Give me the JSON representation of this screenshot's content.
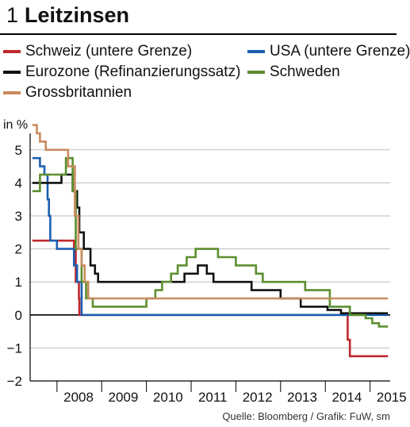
{
  "figure": {
    "number": "1",
    "title": "Leitzinsen",
    "source": "Quelle: Bloomberg / Grafik: FuW, sm"
  },
  "chart_data": {
    "type": "line",
    "ylabel": "in %",
    "ylim": [
      -2,
      5.5
    ],
    "xlim": [
      2007.4,
      2015.45
    ],
    "y_ticks": [
      -2,
      -1,
      0,
      1,
      2,
      3,
      4,
      5
    ],
    "y_tick_labels": [
      "−2",
      "−1",
      "0",
      "1",
      "2",
      "3",
      "4",
      "5"
    ],
    "x_ticks": [
      2008,
      2009,
      2010,
      2011,
      2012,
      2013,
      2014,
      2015
    ],
    "x_tick_labels": [
      "2008",
      "2009",
      "2010",
      "2011",
      "2012",
      "2013",
      "2014",
      "2015"
    ],
    "grid": "horizontal",
    "legend_position": "top",
    "series": [
      {
        "name": "Schweiz (untere Grenze)",
        "color": "#c0282e",
        "points": [
          [
            2007.45,
            2.25
          ],
          [
            2008.2,
            2.25
          ],
          [
            2008.38,
            2.25
          ],
          [
            2008.38,
            2.0
          ],
          [
            2008.42,
            2.0
          ],
          [
            2008.42,
            1.0
          ],
          [
            2008.49,
            1.0
          ],
          [
            2008.49,
            0.5
          ],
          [
            2008.5,
            0.5
          ],
          [
            2008.5,
            0.0
          ],
          [
            2014.5,
            0.0
          ],
          [
            2014.5,
            -0.75
          ],
          [
            2014.55,
            -0.75
          ],
          [
            2014.55,
            -1.25
          ],
          [
            2015.4,
            -1.25
          ]
        ]
      },
      {
        "name": "USA (untere Grenze)",
        "color": "#1c5fb0",
        "points": [
          [
            2007.45,
            4.75
          ],
          [
            2007.62,
            4.75
          ],
          [
            2007.62,
            4.5
          ],
          [
            2007.72,
            4.5
          ],
          [
            2007.72,
            4.25
          ],
          [
            2007.79,
            4.25
          ],
          [
            2007.79,
            3.5
          ],
          [
            2007.82,
            3.5
          ],
          [
            2007.82,
            3.0
          ],
          [
            2007.85,
            3.0
          ],
          [
            2007.85,
            2.25
          ],
          [
            2008.0,
            2.25
          ],
          [
            2008.0,
            2.0
          ],
          [
            2008.38,
            2.0
          ],
          [
            2008.38,
            1.5
          ],
          [
            2008.45,
            1.5
          ],
          [
            2008.45,
            1.0
          ],
          [
            2008.55,
            1.0
          ],
          [
            2008.55,
            0.0
          ],
          [
            2015.4,
            0.0
          ]
        ]
      },
      {
        "name": "Eurozone (Refinanzierungssatz)",
        "color": "#111111",
        "points": [
          [
            2007.45,
            4.0
          ],
          [
            2008.1,
            4.0
          ],
          [
            2008.1,
            4.25
          ],
          [
            2008.35,
            4.25
          ],
          [
            2008.35,
            3.75
          ],
          [
            2008.45,
            3.75
          ],
          [
            2008.45,
            3.25
          ],
          [
            2008.5,
            3.25
          ],
          [
            2008.5,
            2.5
          ],
          [
            2008.6,
            2.5
          ],
          [
            2008.6,
            2.0
          ],
          [
            2008.75,
            2.0
          ],
          [
            2008.75,
            1.5
          ],
          [
            2008.85,
            1.5
          ],
          [
            2008.85,
            1.25
          ],
          [
            2008.92,
            1.25
          ],
          [
            2008.92,
            1.0
          ],
          [
            2010.85,
            1.0
          ],
          [
            2010.85,
            1.25
          ],
          [
            2011.15,
            1.25
          ],
          [
            2011.15,
            1.5
          ],
          [
            2011.35,
            1.5
          ],
          [
            2011.35,
            1.25
          ],
          [
            2011.5,
            1.25
          ],
          [
            2011.5,
            1.0
          ],
          [
            2012.35,
            1.0
          ],
          [
            2012.35,
            0.75
          ],
          [
            2013.0,
            0.75
          ],
          [
            2013.0,
            0.5
          ],
          [
            2013.45,
            0.5
          ],
          [
            2013.45,
            0.25
          ],
          [
            2014.05,
            0.25
          ],
          [
            2014.05,
            0.15
          ],
          [
            2014.35,
            0.15
          ],
          [
            2014.35,
            0.05
          ],
          [
            2015.4,
            0.05
          ]
        ]
      },
      {
        "name": "Schweden",
        "color": "#5b8f2e",
        "points": [
          [
            2007.45,
            3.75
          ],
          [
            2007.62,
            3.75
          ],
          [
            2007.62,
            4.25
          ],
          [
            2008.2,
            4.25
          ],
          [
            2008.2,
            4.75
          ],
          [
            2008.35,
            4.75
          ],
          [
            2008.35,
            3.75
          ],
          [
            2008.42,
            3.75
          ],
          [
            2008.42,
            2.0
          ],
          [
            2008.55,
            2.0
          ],
          [
            2008.55,
            1.0
          ],
          [
            2008.65,
            1.0
          ],
          [
            2008.65,
            0.5
          ],
          [
            2008.8,
            0.5
          ],
          [
            2008.8,
            0.25
          ],
          [
            2010.0,
            0.25
          ],
          [
            2010.0,
            0.5
          ],
          [
            2010.2,
            0.5
          ],
          [
            2010.2,
            0.75
          ],
          [
            2010.35,
            0.75
          ],
          [
            2010.35,
            1.0
          ],
          [
            2010.55,
            1.0
          ],
          [
            2010.55,
            1.25
          ],
          [
            2010.7,
            1.25
          ],
          [
            2010.7,
            1.5
          ],
          [
            2010.9,
            1.5
          ],
          [
            2010.9,
            1.75
          ],
          [
            2011.1,
            1.75
          ],
          [
            2011.1,
            2.0
          ],
          [
            2011.6,
            2.0
          ],
          [
            2011.6,
            1.75
          ],
          [
            2012.0,
            1.75
          ],
          [
            2012.0,
            1.5
          ],
          [
            2012.45,
            1.5
          ],
          [
            2012.45,
            1.25
          ],
          [
            2012.6,
            1.25
          ],
          [
            2012.6,
            1.0
          ],
          [
            2013.55,
            1.0
          ],
          [
            2013.55,
            0.75
          ],
          [
            2014.1,
            0.75
          ],
          [
            2014.1,
            0.25
          ],
          [
            2014.55,
            0.25
          ],
          [
            2014.55,
            0.0
          ],
          [
            2014.9,
            0.0
          ],
          [
            2014.9,
            -0.1
          ],
          [
            2015.05,
            -0.1
          ],
          [
            2015.05,
            -0.25
          ],
          [
            2015.2,
            -0.25
          ],
          [
            2015.2,
            -0.35
          ],
          [
            2015.4,
            -0.35
          ]
        ]
      },
      {
        "name": "Grossbritannien",
        "color": "#c98a5e",
        "points": [
          [
            2007.45,
            5.75
          ],
          [
            2007.55,
            5.75
          ],
          [
            2007.55,
            5.5
          ],
          [
            2007.62,
            5.5
          ],
          [
            2007.62,
            5.25
          ],
          [
            2007.75,
            5.25
          ],
          [
            2007.75,
            5.0
          ],
          [
            2008.25,
            5.0
          ],
          [
            2008.25,
            4.5
          ],
          [
            2008.4,
            4.5
          ],
          [
            2008.4,
            3.0
          ],
          [
            2008.48,
            3.0
          ],
          [
            2008.48,
            2.0
          ],
          [
            2008.55,
            2.0
          ],
          [
            2008.55,
            1.5
          ],
          [
            2008.62,
            1.5
          ],
          [
            2008.62,
            1.0
          ],
          [
            2008.7,
            1.0
          ],
          [
            2008.7,
            0.5
          ],
          [
            2015.4,
            0.5
          ]
        ]
      }
    ]
  },
  "legend_layout": [
    {
      "series_index": 0,
      "row": 0,
      "col": 0
    },
    {
      "series_index": 1,
      "row": 0,
      "col": 1
    },
    {
      "series_index": 2,
      "row": 1,
      "col": 0
    },
    {
      "series_index": 3,
      "row": 1,
      "col": 1
    },
    {
      "series_index": 4,
      "row": 2,
      "col": 0
    }
  ]
}
